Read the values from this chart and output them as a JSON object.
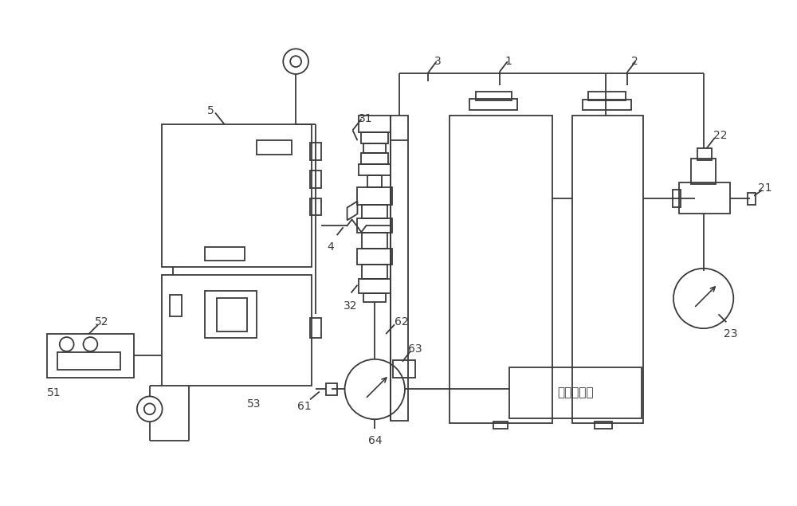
{
  "bg_color": "#ffffff",
  "line_color": "#3a3a3a",
  "lw": 1.3,
  "thin_lw": 0.8
}
